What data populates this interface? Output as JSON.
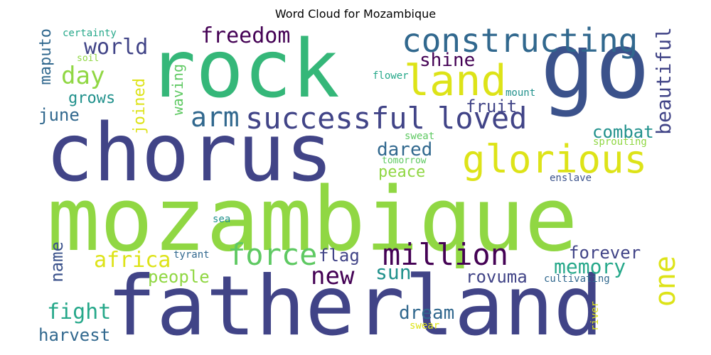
{
  "title": "Word Cloud for Mozambique",
  "palette": {
    "purple": "#440154",
    "indigo": "#3b528b",
    "navy": "#414487",
    "blue": "#31688e",
    "teal": "#21918c",
    "teal_light": "#26a88a",
    "green": "#35b779",
    "green_light": "#5ec962",
    "lime": "#90d743",
    "yellow": "#dde318"
  },
  "words": [
    {
      "text": "mozambique",
      "color": "lime"
    },
    {
      "text": "fatherland",
      "color": "navy"
    },
    {
      "text": "chorus",
      "color": "navy"
    },
    {
      "text": "rock",
      "color": "green"
    },
    {
      "text": "go",
      "color": "indigo"
    },
    {
      "text": "glorious",
      "color": "yellow"
    },
    {
      "text": "constructing",
      "color": "blue"
    },
    {
      "text": "land",
      "color": "yellow"
    },
    {
      "text": "successful",
      "color": "navy"
    },
    {
      "text": "million",
      "color": "purple"
    },
    {
      "text": "force",
      "color": "green_light"
    },
    {
      "text": "loved",
      "color": "navy"
    },
    {
      "text": "arm",
      "color": "blue"
    },
    {
      "text": "day",
      "color": "lime"
    },
    {
      "text": "world",
      "color": "navy"
    },
    {
      "text": "freedom",
      "color": "purple"
    },
    {
      "text": "new",
      "color": "purple"
    },
    {
      "text": "one",
      "color": "yellow"
    },
    {
      "text": "memory",
      "color": "teal_light"
    },
    {
      "text": "forever",
      "color": "navy"
    },
    {
      "text": "rovuma",
      "color": "navy"
    },
    {
      "text": "dream",
      "color": "blue"
    },
    {
      "text": "sun",
      "color": "teal"
    },
    {
      "text": "africa",
      "color": "yellow"
    },
    {
      "text": "people",
      "color": "lime"
    },
    {
      "text": "fight",
      "color": "teal_light"
    },
    {
      "text": "harvest",
      "color": "blue"
    },
    {
      "text": "name",
      "color": "indigo"
    },
    {
      "text": "flag",
      "color": "navy"
    },
    {
      "text": "combat",
      "color": "teal"
    },
    {
      "text": "beautiful",
      "color": "navy"
    },
    {
      "text": "dared",
      "color": "blue"
    },
    {
      "text": "peace",
      "color": "lime"
    },
    {
      "text": "fruit",
      "color": "navy"
    },
    {
      "text": "shine",
      "color": "purple"
    },
    {
      "text": "joined",
      "color": "yellow"
    },
    {
      "text": "waving",
      "color": "green_light"
    },
    {
      "text": "june",
      "color": "blue"
    },
    {
      "text": "grows",
      "color": "teal"
    },
    {
      "text": "maputo",
      "color": "blue"
    },
    {
      "text": "certainty",
      "color": "teal_light"
    },
    {
      "text": "soil",
      "color": "lime"
    },
    {
      "text": "flower",
      "color": "teal_light"
    },
    {
      "text": "mount",
      "color": "teal"
    },
    {
      "text": "sweat",
      "color": "green_light"
    },
    {
      "text": "sprouting",
      "color": "lime"
    },
    {
      "text": "tomorrow",
      "color": "green_light"
    },
    {
      "text": "enslave",
      "color": "indigo"
    },
    {
      "text": "sea",
      "color": "teal"
    },
    {
      "text": "tyrant",
      "color": "blue"
    },
    {
      "text": "cultivating",
      "color": "blue"
    },
    {
      "text": "river",
      "color": "yellow"
    },
    {
      "text": "swear",
      "color": "yellow"
    }
  ]
}
